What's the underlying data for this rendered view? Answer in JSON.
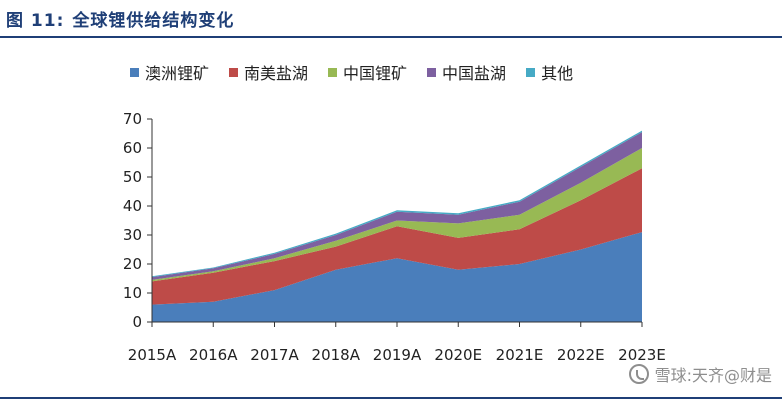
{
  "header": {
    "figure_label": "图 11:",
    "title": "全球锂供给结构变化"
  },
  "watermark": {
    "text": "雪球:天齐@财是"
  },
  "chart_data": {
    "type": "area",
    "stacked": true,
    "title": "",
    "xlabel": "",
    "ylabel": "",
    "categories": [
      "2015A",
      "2016A",
      "2017A",
      "2018A",
      "2019A",
      "2020E",
      "2021E",
      "2022E",
      "2023E"
    ],
    "ylim": [
      0,
      70
    ],
    "yticks": [
      0,
      10,
      20,
      30,
      40,
      50,
      60,
      70
    ],
    "grid": false,
    "legend_position": "top",
    "series": [
      {
        "name": "澳洲锂矿",
        "color": "#4a7ebb",
        "values": [
          6,
          7,
          11,
          18,
          22,
          18,
          20,
          25,
          31
        ]
      },
      {
        "name": "南美盐湖",
        "color": "#be4b48",
        "values": [
          8,
          10,
          10,
          8,
          11,
          11,
          12,
          17,
          22
        ]
      },
      {
        "name": "中国锂矿",
        "color": "#98b954",
        "values": [
          0.5,
          0.5,
          1,
          2,
          2,
          5,
          5,
          6,
          7
        ]
      },
      {
        "name": "中国盐湖",
        "color": "#7d60a0",
        "values": [
          1,
          1,
          1.5,
          2,
          3,
          3,
          4.5,
          5.5,
          5.5
        ]
      },
      {
        "name": "其他",
        "color": "#46aac5",
        "values": [
          0.3,
          0.3,
          0.4,
          0.5,
          0.5,
          0.5,
          0.5,
          0.5,
          0.5
        ]
      }
    ]
  }
}
